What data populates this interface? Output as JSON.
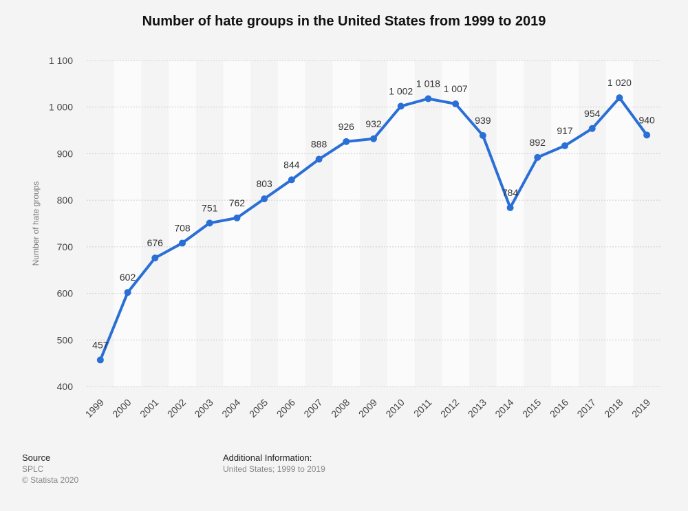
{
  "chart_data": {
    "type": "line",
    "title": "Number of hate groups in the United States from 1999 to 2019",
    "xlabel": "",
    "ylabel": "Number of hate groups",
    "ylim": [
      400,
      1100
    ],
    "yticks": [
      400,
      500,
      600,
      700,
      800,
      900,
      1000,
      1100
    ],
    "ytick_labels": [
      "400",
      "500",
      "600",
      "700",
      "800",
      "900",
      "1 000",
      "1 100"
    ],
    "categories": [
      "1999",
      "2000",
      "2001",
      "2002",
      "2003",
      "2004",
      "2005",
      "2006",
      "2007",
      "2008",
      "2009",
      "2010",
      "2011",
      "2012",
      "2013",
      "2014",
      "2015",
      "2016",
      "2017",
      "2018",
      "2019"
    ],
    "values": [
      457,
      602,
      676,
      708,
      751,
      762,
      803,
      844,
      888,
      926,
      932,
      1002,
      1018,
      1007,
      939,
      784,
      892,
      917,
      954,
      1020,
      940
    ],
    "value_labels": [
      "457",
      "602",
      "676",
      "708",
      "751",
      "762",
      "803",
      "844",
      "888",
      "926",
      "932",
      "1 002",
      "1 018",
      "1 007",
      "939",
      "784",
      "892",
      "917",
      "954",
      "1 020",
      "940"
    ],
    "colors": {
      "line": "#2a6fd6",
      "grid": "#cfcfcf",
      "band": "#fbfbfb"
    }
  },
  "footer": {
    "source_heading": "Source",
    "source_name": "SPLC",
    "copyright": "© Statista 2020",
    "additional_heading": "Additional Information:",
    "additional_text": "United States; 1999 to 2019"
  }
}
